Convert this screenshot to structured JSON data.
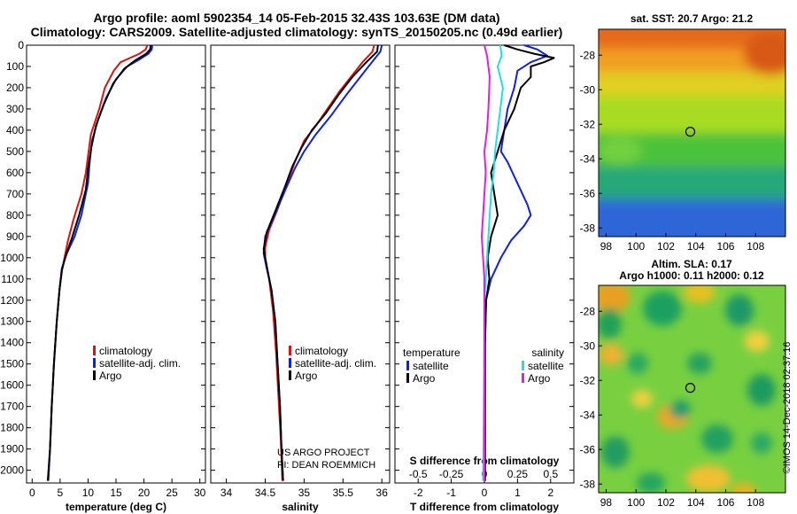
{
  "header": {
    "title_line1": "Argo profile: aoml 5902354_14 05-Feb-2015 32.43S 103.63E (DM data)",
    "title_line2": "Climatology: CARS2009. Satellite-adjusted climatology: synTS_20150205.nc (0.49d earlier)"
  },
  "colors": {
    "climatology": "#e01010",
    "satellite": "#1020e0",
    "argo": "#000000",
    "salinity_satellite": "#20e0e0",
    "salinity_argo": "#e020e0"
  },
  "chart_data": [
    {
      "type": "line",
      "name": "temperature-profile",
      "xlabel": "temperature (deg C)",
      "xlim": [
        -1,
        31
      ],
      "xticks": [
        0,
        5,
        10,
        15,
        20,
        25,
        30
      ],
      "ylim": [
        2060,
        0
      ],
      "yticks": [
        0,
        100,
        200,
        300,
        400,
        500,
        600,
        700,
        800,
        900,
        1000,
        1100,
        1200,
        1300,
        1400,
        1500,
        1600,
        1700,
        1800,
        1900,
        2000
      ],
      "legend": [
        "climatology",
        "satellite-adj. clim.",
        "Argo"
      ],
      "series": [
        {
          "name": "climatology",
          "points": [
            [
              20.6,
              0
            ],
            [
              20.3,
              20
            ],
            [
              19.2,
              40
            ],
            [
              17.5,
              60
            ],
            [
              15.8,
              80
            ],
            [
              14.6,
              120
            ],
            [
              13.0,
              200
            ],
            [
              12.0,
              300
            ],
            [
              10.5,
              420
            ],
            [
              9.6,
              600
            ],
            [
              8.8,
              700
            ],
            [
              7.4,
              820
            ],
            [
              6.4,
              920
            ],
            [
              5.4,
              1050
            ],
            [
              4.9,
              1150
            ],
            [
              4.4,
              1300
            ],
            [
              3.9,
              1500
            ],
            [
              3.5,
              1700
            ],
            [
              3.2,
              1900
            ],
            [
              2.8,
              2050
            ]
          ]
        },
        {
          "name": "satellite-adj. clim.",
          "points": [
            [
              21.5,
              0
            ],
            [
              21.4,
              20
            ],
            [
              20.8,
              40
            ],
            [
              19.0,
              70
            ],
            [
              17.0,
              100
            ],
            [
              15.0,
              160
            ],
            [
              13.2,
              250
            ],
            [
              11.8,
              350
            ],
            [
              10.7,
              450
            ],
            [
              10.3,
              550
            ],
            [
              10.0,
              650
            ],
            [
              8.8,
              800
            ],
            [
              7.6,
              900
            ],
            [
              6.2,
              980
            ],
            [
              5.3,
              1050
            ],
            [
              4.9,
              1150
            ],
            [
              4.4,
              1300
            ],
            [
              3.9,
              1500
            ],
            [
              3.5,
              1700
            ],
            [
              3.2,
              1900
            ],
            [
              2.9,
              2050
            ]
          ]
        },
        {
          "name": "Argo",
          "points": [
            [
              21.2,
              0
            ],
            [
              21.1,
              20
            ],
            [
              20.4,
              40
            ],
            [
              18.5,
              70
            ],
            [
              16.5,
              110
            ],
            [
              14.5,
              180
            ],
            [
              12.8,
              280
            ],
            [
              11.4,
              380
            ],
            [
              10.6,
              480
            ],
            [
              10.0,
              580
            ],
            [
              9.6,
              680
            ],
            [
              8.4,
              800
            ],
            [
              7.2,
              900
            ],
            [
              6.0,
              990
            ],
            [
              5.3,
              1060
            ],
            [
              4.9,
              1150
            ],
            [
              4.4,
              1300
            ],
            [
              3.9,
              1500
            ],
            [
              3.5,
              1700
            ],
            [
              3.2,
              1900
            ],
            [
              2.8,
              2050
            ]
          ]
        }
      ]
    },
    {
      "type": "line",
      "name": "salinity-profile",
      "xlabel": "salinity",
      "xlim": [
        33.8,
        36.1
      ],
      "xticks": [
        34,
        34.5,
        35,
        35.5,
        36
      ],
      "xticklabels": [
        "34",
        "34.5",
        "35",
        "35.5",
        "36"
      ],
      "ylim": [
        2060,
        0
      ],
      "legend": [
        "climatology",
        "satellite-adj. clim.",
        "Argo"
      ],
      "annotation": [
        "US ARGO PROJECT",
        "PI: DEAN ROEMMICH"
      ],
      "series": [
        {
          "name": "climatology",
          "points": [
            [
              35.9,
              0
            ],
            [
              35.88,
              30
            ],
            [
              35.75,
              80
            ],
            [
              35.6,
              150
            ],
            [
              35.45,
              220
            ],
            [
              35.3,
              300
            ],
            [
              35.15,
              380
            ],
            [
              35.0,
              450
            ],
            [
              34.88,
              550
            ],
            [
              34.78,
              650
            ],
            [
              34.65,
              780
            ],
            [
              34.55,
              870
            ],
            [
              34.5,
              950
            ],
            [
              34.5,
              1000
            ],
            [
              34.55,
              1100
            ],
            [
              34.6,
              1250
            ],
            [
              34.64,
              1450
            ],
            [
              34.67,
              1650
            ],
            [
              34.7,
              1850
            ],
            [
              34.72,
              2050
            ]
          ]
        },
        {
          "name": "satellite-adj. clim.",
          "points": [
            [
              36.0,
              0
            ],
            [
              35.98,
              30
            ],
            [
              35.85,
              90
            ],
            [
              35.7,
              160
            ],
            [
              35.55,
              230
            ],
            [
              35.35,
              330
            ],
            [
              35.15,
              420
            ],
            [
              35.0,
              500
            ],
            [
              34.88,
              580
            ],
            [
              34.76,
              680
            ],
            [
              34.62,
              800
            ],
            [
              34.5,
              900
            ],
            [
              34.48,
              980
            ],
            [
              34.52,
              1050
            ],
            [
              34.58,
              1150
            ],
            [
              34.63,
              1300
            ],
            [
              34.66,
              1500
            ],
            [
              34.69,
              1700
            ],
            [
              34.71,
              1900
            ],
            [
              34.73,
              2050
            ]
          ]
        },
        {
          "name": "Argo",
          "points": [
            [
              35.95,
              0
            ],
            [
              35.94,
              30
            ],
            [
              35.8,
              80
            ],
            [
              35.62,
              150
            ],
            [
              35.45,
              230
            ],
            [
              35.28,
              320
            ],
            [
              35.1,
              400
            ],
            [
              34.97,
              480
            ],
            [
              34.85,
              570
            ],
            [
              34.75,
              670
            ],
            [
              34.62,
              790
            ],
            [
              34.52,
              880
            ],
            [
              34.48,
              960
            ],
            [
              34.52,
              1040
            ],
            [
              34.58,
              1150
            ],
            [
              34.63,
              1300
            ],
            [
              34.66,
              1500
            ],
            [
              34.69,
              1700
            ],
            [
              34.71,
              1900
            ],
            [
              34.73,
              2050
            ]
          ]
        }
      ]
    },
    {
      "type": "line",
      "name": "difference-profile",
      "xlabel": "T difference from climatology",
      "xlim": [
        -2.7,
        2.7
      ],
      "xticks": [
        -2,
        -1,
        0,
        1,
        2
      ],
      "top_xlabel": "S difference from climatology",
      "top_xticks": [
        -0.5,
        -0.25,
        0,
        0.25,
        0.5
      ],
      "top_xticklabels": [
        "-0.5",
        "-0.25",
        "0",
        "0.25",
        "0.5"
      ],
      "legend_temperature": [
        "temperature",
        "satellite",
        "Argo"
      ],
      "legend_salinity": [
        "salinity",
        "satellite",
        "Argo"
      ],
      "series": [
        {
          "name": "T satellite",
          "points": [
            [
              1.2,
              0
            ],
            [
              1.6,
              20
            ],
            [
              1.9,
              50
            ],
            [
              1.4,
              80
            ],
            [
              1.0,
              120
            ],
            [
              0.9,
              200
            ],
            [
              0.7,
              300
            ],
            [
              0.6,
              400
            ],
            [
              0.5,
              500
            ],
            [
              0.7,
              550
            ],
            [
              1.0,
              650
            ],
            [
              1.3,
              750
            ],
            [
              1.4,
              800
            ],
            [
              1.2,
              850
            ],
            [
              0.8,
              920
            ],
            [
              0.5,
              1000
            ],
            [
              0.2,
              1100
            ],
            [
              0.05,
              1200
            ],
            [
              0.02,
              1400
            ],
            [
              0.02,
              2050
            ]
          ]
        },
        {
          "name": "T Argo",
          "points": [
            [
              0.6,
              0
            ],
            [
              1.0,
              20
            ],
            [
              1.5,
              40
            ],
            [
              2.1,
              60
            ],
            [
              1.8,
              80
            ],
            [
              1.4,
              100
            ],
            [
              1.4,
              150
            ],
            [
              1.1,
              200
            ],
            [
              0.9,
              300
            ],
            [
              0.6,
              400
            ],
            [
              0.4,
              500
            ],
            [
              0.2,
              600
            ],
            [
              0.3,
              700
            ],
            [
              0.4,
              800
            ],
            [
              0.2,
              900
            ],
            [
              0.1,
              1000
            ],
            [
              0.15,
              1100
            ],
            [
              0.05,
              1200
            ],
            [
              0.02,
              1400
            ],
            [
              0.02,
              2050
            ]
          ]
        },
        {
          "name": "S satellite",
          "points": [
            [
              0.12,
              0
            ],
            [
              0.13,
              50
            ],
            [
              0.1,
              100
            ],
            [
              0.14,
              200
            ],
            [
              0.12,
              300
            ],
            [
              0.1,
              400
            ],
            [
              0.08,
              500
            ],
            [
              0.07,
              600
            ],
            [
              0.05,
              700
            ],
            [
              0.04,
              800
            ],
            [
              0.03,
              900
            ],
            [
              0.02,
              1000
            ],
            [
              0.01,
              1100
            ],
            [
              0.0,
              1200
            ],
            [
              0.0,
              1400
            ],
            [
              -0.01,
              2050
            ]
          ]
        },
        {
          "name": "S Argo",
          "points": [
            [
              0.0,
              0
            ],
            [
              0.02,
              50
            ],
            [
              0.04,
              150
            ],
            [
              0.03,
              300
            ],
            [
              0.02,
              400
            ],
            [
              0.0,
              500
            ],
            [
              0.01,
              600
            ],
            [
              0.0,
              700
            ],
            [
              -0.01,
              800
            ],
            [
              -0.02,
              900
            ],
            [
              -0.01,
              1000
            ],
            [
              0.0,
              1100
            ],
            [
              0.0,
              1200
            ],
            [
              0.0,
              1400
            ],
            [
              0.0,
              2050
            ]
          ]
        }
      ]
    },
    {
      "type": "heatmap",
      "name": "sst-map",
      "title": "sat. SST: 20.7 Argo: 21.2",
      "xlim": [
        97.5,
        110
      ],
      "ylim": [
        -38.5,
        -26.5
      ],
      "xticks": [
        98,
        100,
        102,
        104,
        106,
        108
      ],
      "yticks": [
        -28,
        -30,
        -32,
        -34,
        -36,
        -38
      ],
      "marker": [
        103.63,
        -32.43
      ]
    },
    {
      "type": "heatmap",
      "name": "sla-map",
      "title": "Altim. SLA: 0.17",
      "subtitle": "Argo h1000: 0.11 h2000: 0.12",
      "xlim": [
        97.5,
        110
      ],
      "ylim": [
        -38.5,
        -26.5
      ],
      "xticks": [
        98,
        100,
        102,
        104,
        106,
        108
      ],
      "yticks": [
        -28,
        -30,
        -32,
        -34,
        -36,
        -38
      ],
      "marker": [
        103.63,
        -32.43
      ]
    }
  ],
  "footer": {
    "credit": "©IMOS 14-Dec-2018 02:37:16"
  }
}
